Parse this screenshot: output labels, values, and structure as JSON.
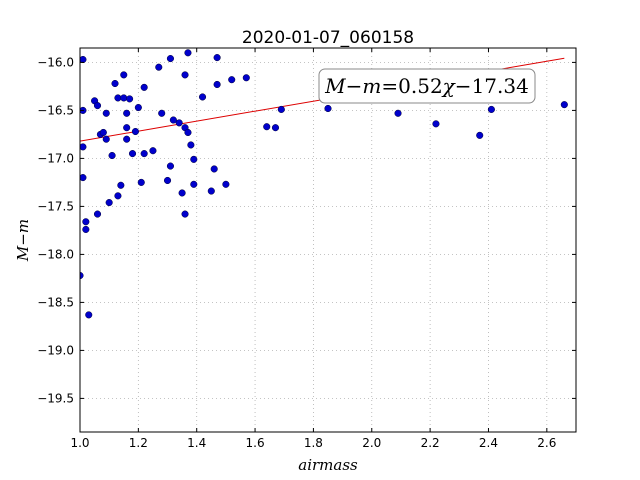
{
  "chart_data": {
    "type": "scatter",
    "title": "2020-01-07_060158",
    "xlabel": "airmass",
    "ylabel": "M−m",
    "xlim": [
      1.0,
      2.7
    ],
    "ylim": [
      -19.85,
      -15.85
    ],
    "y_inverted": false,
    "grid": true,
    "xticks": [
      1.0,
      1.2,
      1.4,
      1.6,
      1.8,
      2.0,
      2.2,
      2.4,
      2.6
    ],
    "xtick_labels": [
      "1.0",
      "1.2",
      "1.4",
      "1.6",
      "1.8",
      "2.0",
      "2.2",
      "2.4",
      "2.6"
    ],
    "yticks": [
      -16.0,
      -16.5,
      -17.0,
      -17.5,
      -18.0,
      -18.5,
      -19.0,
      -19.5
    ],
    "ytick_labels": [
      "−16.0",
      "−16.5",
      "−17.0",
      "−17.5",
      "−18.0",
      "−18.5",
      "−19.0",
      "−19.5"
    ],
    "points_color": "#0000cc",
    "fit_color": "#dd0000",
    "points": [
      {
        "x": 1.0,
        "y": -18.22
      },
      {
        "x": 1.01,
        "y": -15.97
      },
      {
        "x": 1.01,
        "y": -16.5
      },
      {
        "x": 1.01,
        "y": -16.88
      },
      {
        "x": 1.01,
        "y": -17.2
      },
      {
        "x": 1.02,
        "y": -17.66
      },
      {
        "x": 1.02,
        "y": -17.74
      },
      {
        "x": 1.03,
        "y": -18.63
      },
      {
        "x": 1.05,
        "y": -16.4
      },
      {
        "x": 1.06,
        "y": -16.45
      },
      {
        "x": 1.06,
        "y": -17.58
      },
      {
        "x": 1.07,
        "y": -16.75
      },
      {
        "x": 1.08,
        "y": -16.73
      },
      {
        "x": 1.09,
        "y": -16.53
      },
      {
        "x": 1.09,
        "y": -16.8
      },
      {
        "x": 1.1,
        "y": -17.46
      },
      {
        "x": 1.11,
        "y": -16.97
      },
      {
        "x": 1.12,
        "y": -16.22
      },
      {
        "x": 1.13,
        "y": -16.37
      },
      {
        "x": 1.13,
        "y": -17.39
      },
      {
        "x": 1.14,
        "y": -17.28
      },
      {
        "x": 1.15,
        "y": -16.13
      },
      {
        "x": 1.15,
        "y": -16.37
      },
      {
        "x": 1.16,
        "y": -16.53
      },
      {
        "x": 1.16,
        "y": -16.68
      },
      {
        "x": 1.16,
        "y": -16.8
      },
      {
        "x": 1.17,
        "y": -16.38
      },
      {
        "x": 1.18,
        "y": -16.95
      },
      {
        "x": 1.19,
        "y": -16.72
      },
      {
        "x": 1.2,
        "y": -16.47
      },
      {
        "x": 1.21,
        "y": -17.25
      },
      {
        "x": 1.22,
        "y": -16.26
      },
      {
        "x": 1.22,
        "y": -16.95
      },
      {
        "x": 1.25,
        "y": -16.92
      },
      {
        "x": 1.27,
        "y": -16.05
      },
      {
        "x": 1.28,
        "y": -16.53
      },
      {
        "x": 1.3,
        "y": -17.23
      },
      {
        "x": 1.31,
        "y": -15.96
      },
      {
        "x": 1.31,
        "y": -17.08
      },
      {
        "x": 1.32,
        "y": -16.6
      },
      {
        "x": 1.34,
        "y": -16.63
      },
      {
        "x": 1.35,
        "y": -17.36
      },
      {
        "x": 1.36,
        "y": -17.58
      },
      {
        "x": 1.36,
        "y": -16.13
      },
      {
        "x": 1.36,
        "y": -16.68
      },
      {
        "x": 1.37,
        "y": -15.9
      },
      {
        "x": 1.37,
        "y": -16.73
      },
      {
        "x": 1.38,
        "y": -16.86
      },
      {
        "x": 1.39,
        "y": -17.01
      },
      {
        "x": 1.39,
        "y": -17.27
      },
      {
        "x": 1.42,
        "y": -16.36
      },
      {
        "x": 1.45,
        "y": -17.34
      },
      {
        "x": 1.46,
        "y": -17.11
      },
      {
        "x": 1.47,
        "y": -15.95
      },
      {
        "x": 1.47,
        "y": -16.23
      },
      {
        "x": 1.5,
        "y": -17.27
      },
      {
        "x": 1.52,
        "y": -16.18
      },
      {
        "x": 1.57,
        "y": -16.16
      },
      {
        "x": 1.64,
        "y": -16.67
      },
      {
        "x": 1.67,
        "y": -16.68
      },
      {
        "x": 1.69,
        "y": -16.49
      },
      {
        "x": 1.85,
        "y": -16.48
      },
      {
        "x": 2.09,
        "y": -16.53
      },
      {
        "x": 2.22,
        "y": -16.64
      },
      {
        "x": 2.37,
        "y": -16.76
      },
      {
        "x": 2.41,
        "y": -16.49
      },
      {
        "x": 2.66,
        "y": -16.44
      }
    ],
    "fit": {
      "slope": 0.52,
      "intercept": -17.34,
      "x_range": [
        1.0,
        2.66
      ]
    },
    "annotation": {
      "prefix": "M",
      "minus1": "−",
      "m": "m",
      "equals": "=",
      "coef": "0.52",
      "chi": "χ",
      "minus2": "−",
      "const": "17.34"
    }
  }
}
